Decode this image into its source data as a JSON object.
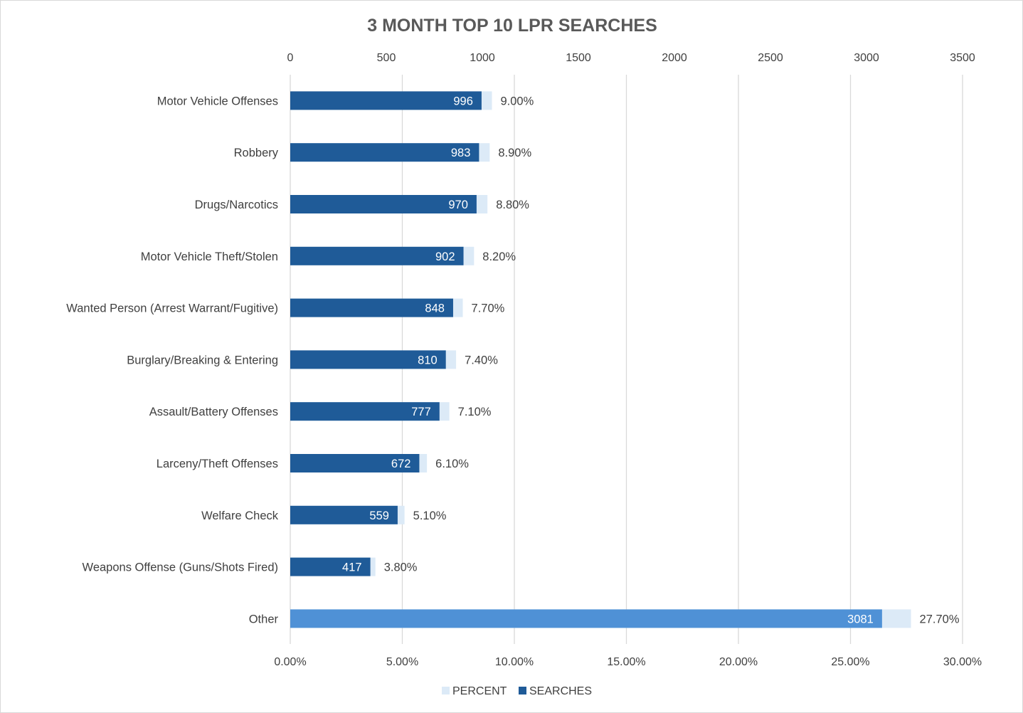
{
  "chart_data": {
    "type": "bar",
    "orientation": "horizontal",
    "title": "3 MONTH TOP 10 LPR SEARCHES",
    "categories": [
      "Motor Vehicle Offenses",
      "Robbery",
      "Drugs/Narcotics",
      "Motor Vehicle Theft/Stolen",
      "Wanted Person (Arrest Warrant/Fugitive)",
      "Burglary/Breaking & Entering",
      "Assault/Battery Offenses",
      "Larceny/Theft Offenses",
      "Welfare Check",
      "Weapons Offense (Guns/Shots Fired)",
      "Other"
    ],
    "series": [
      {
        "name": "PERCENT",
        "axis": "bottom",
        "values": [
          9.0,
          8.9,
          8.8,
          8.2,
          7.7,
          7.4,
          7.1,
          6.1,
          5.1,
          3.8,
          27.7
        ],
        "labels": [
          "9.00%",
          "8.90%",
          "8.80%",
          "8.20%",
          "7.70%",
          "7.40%",
          "7.10%",
          "6.10%",
          "5.10%",
          "3.80%",
          "27.70%"
        ],
        "color": "#dceaf7"
      },
      {
        "name": "SEARCHES",
        "axis": "top",
        "values": [
          996,
          983,
          970,
          902,
          848,
          810,
          777,
          672,
          559,
          417,
          3081
        ],
        "labels": [
          "996",
          "983",
          "970",
          "902",
          "848",
          "810",
          "777",
          "672",
          "559",
          "417",
          "3081"
        ],
        "color": "#1f5b98",
        "highlight_color": "#4f91d6",
        "highlight_index": 10
      }
    ],
    "top_axis": {
      "range": [
        0,
        3500
      ],
      "ticks": [
        "0",
        "500",
        "1000",
        "1500",
        "2000",
        "2500",
        "3000",
        "3500"
      ]
    },
    "bottom_axis": {
      "range": [
        0,
        30
      ],
      "ticks": [
        "0.00%",
        "5.00%",
        "10.00%",
        "15.00%",
        "20.00%",
        "25.00%",
        "30.00%"
      ]
    },
    "grid": true,
    "legend": {
      "position": "bottom",
      "entries": [
        "PERCENT",
        "SEARCHES"
      ]
    },
    "colors": {
      "percent": "#dceaf7",
      "searches": "#1f5b98",
      "other_searches": "#4f91d6",
      "gridline": "#d9d9d9"
    }
  }
}
